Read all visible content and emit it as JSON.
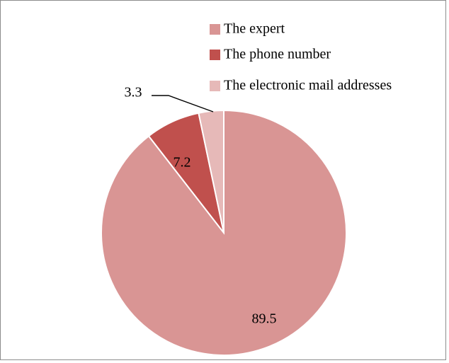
{
  "chart_data": {
    "type": "pie",
    "title": "",
    "legend_position": "top-right",
    "slices": [
      {
        "label": "The expert",
        "value": 89.5,
        "color": "#d99594"
      },
      {
        "label": "The phone number",
        "value": 7.2,
        "color": "#c0504d"
      },
      {
        "label": "The electronic mail addresses",
        "value": 3.3,
        "color": "#e6b9b8"
      }
    ],
    "data_labels": [
      "89.5",
      "7.2",
      "3.3"
    ]
  }
}
